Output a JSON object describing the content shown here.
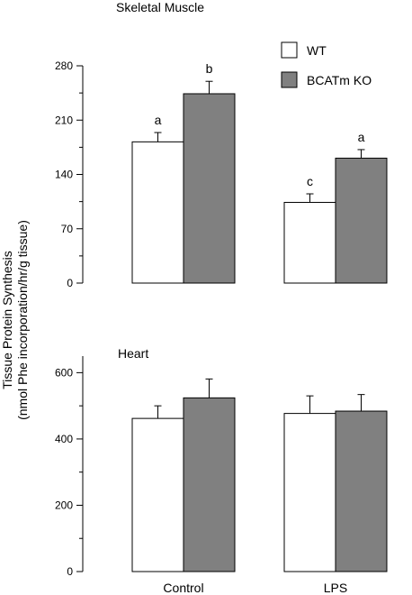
{
  "ylabel_line1": "Tissue Protein Synthesis",
  "ylabel_line2": "(nmol Phe incorporation/hr/g tissue)",
  "legend": [
    {
      "label": "WT",
      "color": "#ffffff"
    },
    {
      "label": "BCATm KO",
      "color": "#808080"
    }
  ],
  "chart_data": [
    {
      "type": "bar",
      "title": "Skeletal Muscle",
      "categories": [
        "Control",
        "LPS"
      ],
      "ylim": [
        0,
        280
      ],
      "yticks": [
        0,
        70,
        140,
        210,
        280
      ],
      "series": [
        {
          "name": "WT",
          "color": "#ffffff",
          "values": [
            182,
            104
          ],
          "errors": [
            12,
            11
          ],
          "labels": [
            "a",
            "c"
          ]
        },
        {
          "name": "BCATm KO",
          "color": "#808080",
          "values": [
            244,
            161
          ],
          "errors": [
            16,
            11
          ],
          "labels": [
            "b",
            "a"
          ]
        }
      ]
    },
    {
      "type": "bar",
      "title": "Heart",
      "categories": [
        "Control",
        "LPS"
      ],
      "ylim": [
        0,
        650
      ],
      "yticks": [
        0,
        200,
        400,
        600
      ],
      "series": [
        {
          "name": "WT",
          "color": "#ffffff",
          "values": [
            462,
            477
          ],
          "errors": [
            38,
            53
          ],
          "labels": [
            "",
            ""
          ]
        },
        {
          "name": "BCATm KO",
          "color": "#808080",
          "values": [
            524,
            484
          ],
          "errors": [
            57,
            50
          ],
          "labels": [
            "",
            ""
          ]
        }
      ]
    }
  ]
}
